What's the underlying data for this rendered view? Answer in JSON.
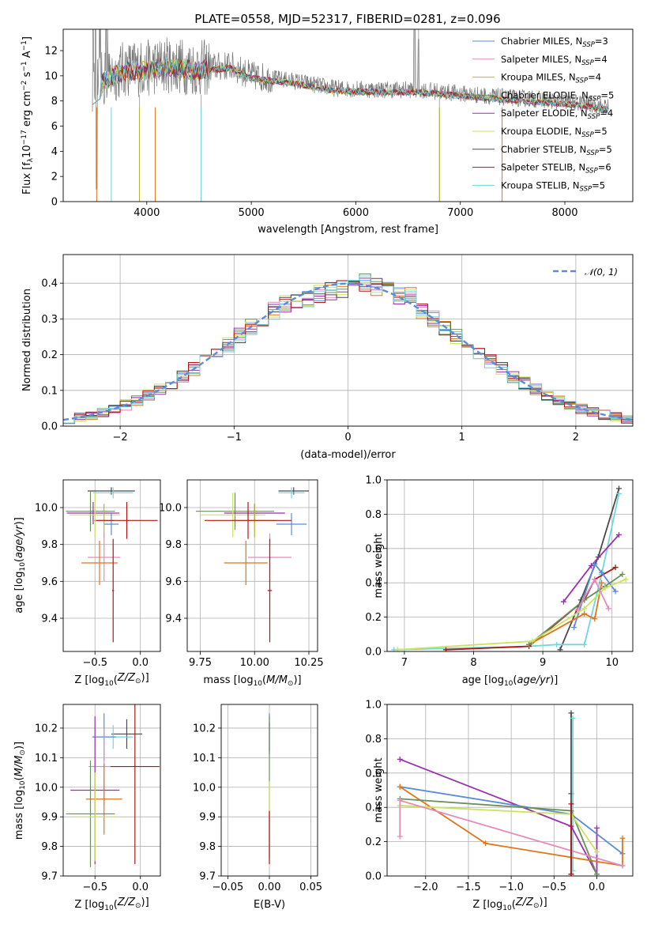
{
  "figure": {
    "title": "PLATE=0558, MJD=52317, FIBERID=0281, z=0.096"
  },
  "colors": {
    "Chabrier MILES": "#5b8bd9",
    "Salpeter MILES": "#e58bb9",
    "Kroupa MILES": "#b7b32c",
    "Chabrier ELODIE": "#6a8f5b",
    "Salpeter ELODIE": "#9a2fb0",
    "Kroupa ELODIE": "#c9e35a",
    "Chabrier STELIB": "#4a4a4a",
    "Salpeter STELIB": "#b31414",
    "Kroupa STELIB": "#6fd6dc",
    "orange": "#e0751c",
    "data": "#777777",
    "normal": "#5b8bd9"
  },
  "chart_data": [
    {
      "id": "spectrum",
      "type": "line",
      "title": "PLATE=0558, MJD=52317, FIBERID=0281, z=0.096",
      "xlabel": "wavelength [Angstrom, rest frame]",
      "ylabel": "Flux [f_λ 10^-17 erg cm^-2 s^-1 A^-1]",
      "xlim": [
        3200,
        8650
      ],
      "ylim": [
        0,
        13.7
      ],
      "xticks": [
        "4000",
        "5000",
        "6000",
        "7000",
        "8000"
      ],
      "yticks": [
        "0",
        "2",
        "4",
        "6",
        "8",
        "10",
        "12"
      ],
      "legend_position": "top-right",
      "legend": [
        {
          "model": "Chabrier MILES",
          "nssp": "3"
        },
        {
          "model": "Salpeter MILES",
          "nssp": "4"
        },
        {
          "model": "Kroupa MILES",
          "nssp": "4"
        },
        {
          "model": "Chabrier ELODIE",
          "nssp": "5"
        },
        {
          "model": "Salpeter ELODIE",
          "nssp": "4"
        },
        {
          "model": "Kroupa ELODIE",
          "nssp": "5"
        },
        {
          "model": "Chabrier STELIB",
          "nssp": "5"
        },
        {
          "model": "Salpeter STELIB",
          "nssp": "6"
        },
        {
          "model": "Kroupa STELIB",
          "nssp": "5"
        }
      ],
      "data_envelope": {
        "x": [
          3480,
          3600,
          3800,
          4000,
          4200,
          4500,
          4800,
          5000,
          5400,
          5800,
          6200,
          6600,
          7000,
          7400,
          7800,
          8200,
          8400
        ],
        "y": [
          9.0,
          9.8,
          10.6,
          10.6,
          10.9,
          10.6,
          10.8,
          10.0,
          9.6,
          9.0,
          8.9,
          8.9,
          8.6,
          8.3,
          8.1,
          7.8,
          7.5
        ]
      }
    },
    {
      "id": "residuals",
      "type": "histogram",
      "xlabel": "(data-model)/error",
      "ylabel": "Normed distribution",
      "xlim": [
        -2.5,
        2.5
      ],
      "ylim": [
        0,
        0.48
      ],
      "xticks": [
        "−2",
        "−1",
        "0",
        "1",
        "2"
      ],
      "yticks": [
        "0.0",
        "0.1",
        "0.2",
        "0.3",
        "0.4"
      ],
      "legend_position": "top-right",
      "legend_label": "𝒩(0, 1)",
      "bin_width": 0.1
    },
    {
      "id": "age-vs-Z",
      "type": "errorbar",
      "xlabel": "Z [log10(Z/Z☉)]",
      "ylabel": "age  [log10(age/yr)]",
      "xlim": [
        -0.85,
        0.22
      ],
      "ylim": [
        9.22,
        10.15
      ],
      "xticks": [
        "−0.5",
        "0.0"
      ],
      "yticks": [
        "9.4",
        "9.6",
        "9.8",
        "10.0"
      ],
      "points": [
        {
          "x": -0.32,
          "y": 10.09,
          "xerr": 0.26,
          "yerr": 0.02,
          "c": "#4a4a4a"
        },
        {
          "x": -0.3,
          "y": 10.08,
          "xerr": 0.22,
          "yerr": 0.03,
          "c": "#6fd6dc"
        },
        {
          "x": -0.55,
          "y": 9.98,
          "xerr": 0.27,
          "yerr": 0.11,
          "c": "#6a8f5b"
        },
        {
          "x": -0.52,
          "y": 9.97,
          "xerr": 0.29,
          "yerr": 0.06,
          "c": "#9a2fb0"
        },
        {
          "x": -0.5,
          "y": 9.96,
          "xerr": 0.28,
          "yerr": 0.12,
          "c": "#c9e35a"
        },
        {
          "x": -0.32,
          "y": 9.91,
          "xerr": 0.08,
          "yerr": 0.06,
          "c": "#5b8bd9"
        },
        {
          "x": -0.4,
          "y": 9.93,
          "xerr": 0.11,
          "yerr": 0.09,
          "c": "#b7b32c"
        },
        {
          "x": -0.15,
          "y": 9.93,
          "xerr": 0.34,
          "yerr": 0.1,
          "c": "#b31414"
        },
        {
          "x": -0.4,
          "y": 9.73,
          "xerr": 0.18,
          "yerr": 0.13,
          "c": "#e58bb9"
        },
        {
          "x": -0.45,
          "y": 9.7,
          "xerr": 0.2,
          "yerr": 0.12,
          "c": "#e0751c"
        },
        {
          "x": -0.3,
          "y": 9.55,
          "xerr": 0.01,
          "yerr": 0.28,
          "c": "#b31414"
        }
      ]
    },
    {
      "id": "age-vs-mass",
      "type": "errorbar",
      "xlabel": "mass [log10(M/M☉)]",
      "ylabel": "",
      "xlim": [
        9.69,
        10.29
      ],
      "ylim": [
        9.22,
        10.15
      ],
      "xticks": [
        "9.75",
        "10.00",
        "10.25"
      ],
      "yticks": [
        "9.4",
        "9.6",
        "9.8",
        "10.0"
      ],
      "points": [
        {
          "x": 10.18,
          "y": 10.09,
          "xerr": 0.07,
          "yerr": 0.02,
          "c": "#4a4a4a"
        },
        {
          "x": 10.17,
          "y": 10.08,
          "xerr": 0.06,
          "yerr": 0.03,
          "c": "#6fd6dc"
        },
        {
          "x": 9.91,
          "y": 9.98,
          "xerr": 0.18,
          "yerr": 0.1,
          "c": "#6a8f5b"
        },
        {
          "x": 10.0,
          "y": 9.97,
          "xerr": 0.14,
          "yerr": 0.05,
          "c": "#9a2fb0"
        },
        {
          "x": 9.9,
          "y": 9.96,
          "xerr": 0.15,
          "yerr": 0.12,
          "c": "#c9e35a"
        },
        {
          "x": 10.17,
          "y": 9.91,
          "xerr": 0.07,
          "yerr": 0.06,
          "c": "#5b8bd9"
        },
        {
          "x": 10.0,
          "y": 9.93,
          "xerr": 0.1,
          "yerr": 0.09,
          "c": "#b7b32c"
        },
        {
          "x": 9.97,
          "y": 9.93,
          "xerr": 0.2,
          "yerr": 0.1,
          "c": "#b31414"
        },
        {
          "x": 10.07,
          "y": 9.73,
          "xerr": 0.1,
          "yerr": 0.13,
          "c": "#e58bb9"
        },
        {
          "x": 9.96,
          "y": 9.7,
          "xerr": 0.1,
          "yerr": 0.12,
          "c": "#e0751c"
        },
        {
          "x": 10.07,
          "y": 9.55,
          "xerr": 0.01,
          "yerr": 0.28,
          "c": "#b31414"
        }
      ]
    },
    {
      "id": "massweight-vs-age",
      "type": "line",
      "xlabel": "age  [log10(age/yr)]",
      "ylabel": "mass weight",
      "xlim": [
        6.75,
        10.3
      ],
      "ylim": [
        0,
        1.0
      ],
      "xticks": [
        "7",
        "8",
        "9",
        "10"
      ],
      "yticks": [
        "0.0",
        "0.2",
        "0.4",
        "0.6",
        "0.8",
        "1.0"
      ],
      "series": [
        {
          "c": "#4a4a4a",
          "x": [
            9.25,
            9.55,
            9.8,
            10.1
          ],
          "y": [
            0.01,
            0.3,
            0.55,
            0.95
          ]
        },
        {
          "c": "#6fd6dc",
          "x": [
            6.85,
            8.8,
            9.2,
            9.6,
            9.85,
            10.1
          ],
          "y": [
            0.01,
            0.03,
            0.04,
            0.04,
            0.45,
            0.92
          ]
        },
        {
          "c": "#9a2fb0",
          "x": [
            9.3,
            9.7,
            10.1
          ],
          "y": [
            0.29,
            0.5,
            0.68
          ]
        },
        {
          "c": "#b31414",
          "x": [
            7.6,
            8.8,
            9.6,
            9.75,
            10.05
          ],
          "y": [
            0.01,
            0.03,
            0.3,
            0.42,
            0.49
          ]
        },
        {
          "c": "#5b8bd9",
          "x": [
            9.45,
            9.75,
            9.85,
            10.05
          ],
          "y": [
            0.14,
            0.51,
            0.46,
            0.35
          ]
        },
        {
          "c": "#e0751c",
          "x": [
            8.8,
            9.6,
            9.75,
            9.85
          ],
          "y": [
            0.04,
            0.22,
            0.19,
            0.4
          ]
        },
        {
          "c": "#6a8f5b",
          "x": [
            8.8,
            9.6,
            9.9,
            10.15
          ],
          "y": [
            0.04,
            0.3,
            0.38,
            0.45
          ]
        },
        {
          "c": "#c9e35a",
          "x": [
            6.9,
            8.85,
            9.6,
            9.9,
            10.2
          ],
          "y": [
            0.01,
            0.06,
            0.25,
            0.37,
            0.42
          ]
        },
        {
          "c": "#e58bb9",
          "x": [
            9.5,
            9.75,
            9.95
          ],
          "y": [
            0.24,
            0.42,
            0.25
          ]
        }
      ]
    },
    {
      "id": "mass-vs-Z",
      "type": "errorbar",
      "xlabel": "Z [log10(Z/Z☉)]",
      "ylabel": "mass [log10(M/M☉)]",
      "xlim": [
        -0.85,
        0.22
      ],
      "ylim": [
        9.7,
        10.28
      ],
      "xticks": [
        "−0.5",
        "0.0"
      ],
      "yticks": [
        "9.7",
        "9.8",
        "9.9",
        "10.0",
        "10.1",
        "10.2"
      ],
      "points": [
        {
          "x": -0.15,
          "y": 10.18,
          "xerr": 0.17,
          "yerr": 0.05,
          "c": "#4a4a4a"
        },
        {
          "x": -0.3,
          "y": 10.17,
          "xerr": 0.22,
          "yerr": 0.04,
          "c": "#6fd6dc"
        },
        {
          "x": -0.4,
          "y": 10.17,
          "xerr": 0.13,
          "yerr": 0.08,
          "c": "#5b8bd9"
        },
        {
          "x": -0.4,
          "y": 10.07,
          "xerr": 0.17,
          "yerr": 0.13,
          "c": "#e58bb9"
        },
        {
          "x": -0.06,
          "y": 10.07,
          "xerr": 0.27,
          "yerr": 0.33,
          "c": "#b31414"
        },
        {
          "x": -0.5,
          "y": 9.99,
          "xerr": 0.27,
          "yerr": 0.25,
          "c": "#9a2fb0"
        },
        {
          "x": -0.4,
          "y": 9.96,
          "xerr": 0.2,
          "yerr": 0.12,
          "c": "#e0751c"
        },
        {
          "x": -0.55,
          "y": 9.91,
          "xerr": 0.27,
          "yerr": 0.18,
          "c": "#6a8f5b"
        },
        {
          "x": -0.5,
          "y": 9.9,
          "xerr": 0.24,
          "yerr": 0.15,
          "c": "#c9e35a"
        }
      ]
    },
    {
      "id": "mass-vs-EBV",
      "type": "errorbar",
      "xlabel": "E(B-V)",
      "ylabel": "",
      "xlim": [
        -0.058,
        0.058
      ],
      "ylim": [
        9.7,
        10.28
      ],
      "xticks": [
        "−0.05",
        "0.00",
        "0.05"
      ],
      "yticks": [
        "9.7",
        "9.8",
        "9.9",
        "10.0",
        "10.1",
        "10.2"
      ],
      "points": [
        {
          "x": 0.0,
          "y": 10.18,
          "xerr": 0.0,
          "yerr": 0.07,
          "c": "#5b8bd9"
        },
        {
          "x": 0.0,
          "y": 10.17,
          "xerr": 0.0,
          "yerr": 0.05,
          "c": "#9a2fb0"
        },
        {
          "x": 0.0,
          "y": 10.0,
          "xerr": 0.0,
          "yerr": 0.24,
          "c": "#6a8f5b"
        },
        {
          "x": 0.0,
          "y": 9.88,
          "xerr": 0.0,
          "yerr": 0.14,
          "c": "#c9e35a"
        },
        {
          "x": 0.0,
          "y": 9.83,
          "xerr": 0.0,
          "yerr": 0.09,
          "c": "#b31414"
        }
      ]
    },
    {
      "id": "massweight-vs-Z",
      "type": "line",
      "xlabel": "Z [log10(Z/Z☉)]",
      "ylabel": "mass weight",
      "xlim": [
        -2.45,
        0.42
      ],
      "ylim": [
        0,
        1.0
      ],
      "xticks": [
        "−2.0",
        "−1.5",
        "−1.0",
        "−0.5",
        "0.0"
      ],
      "yticks": [
        "0.0",
        "0.2",
        "0.4",
        "0.6",
        "0.8",
        "1.0"
      ],
      "series": [
        {
          "c": "#4a4a4a",
          "x": [
            -0.3,
            -0.3,
            -0.3
          ],
          "y": [
            0.01,
            0.48,
            0.95
          ]
        },
        {
          "c": "#6fd6dc",
          "x": [
            -0.28,
            -0.28
          ],
          "y": [
            0.03,
            0.92
          ]
        },
        {
          "c": "#9a2fb0",
          "x": [
            -2.3,
            -0.3,
            0.0,
            0.0
          ],
          "y": [
            0.68,
            0.29,
            0.01,
            0.28
          ]
        },
        {
          "c": "#5b8bd9",
          "x": [
            -2.3,
            -0.3,
            0.3
          ],
          "y": [
            0.52,
            0.36,
            0.13
          ]
        },
        {
          "c": "#e0751c",
          "x": [
            -2.3,
            -1.3,
            0.3,
            0.3
          ],
          "y": [
            0.52,
            0.19,
            0.06,
            0.22
          ]
        },
        {
          "c": "#6a8f5b",
          "x": [
            -2.3,
            -0.3,
            0.0
          ],
          "y": [
            0.45,
            0.38,
            0.01
          ]
        },
        {
          "c": "#c9e35a",
          "x": [
            -2.3,
            -0.3,
            0.0
          ],
          "y": [
            0.41,
            0.36,
            0.14
          ]
        },
        {
          "c": "#e58bb9",
          "x": [
            -2.3,
            -2.3,
            0.3
          ],
          "y": [
            0.23,
            0.44,
            0.06
          ]
        },
        {
          "c": "#b31414",
          "x": [
            -0.3,
            -0.3
          ],
          "y": [
            0.01,
            0.42
          ]
        }
      ]
    }
  ]
}
